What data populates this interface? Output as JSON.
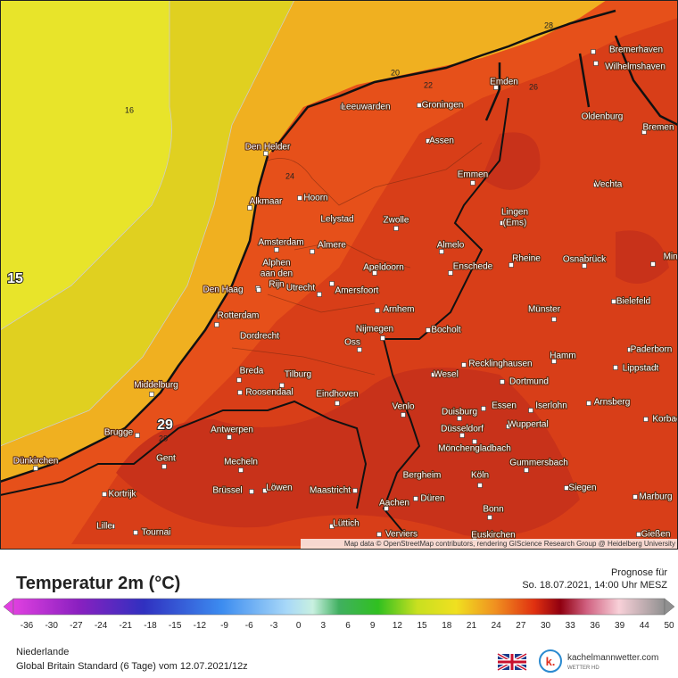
{
  "map": {
    "cities": [
      "Bremerhaven",
      "Wilhelmshaven",
      "Emden",
      "Leeuwarden",
      "Groningen",
      "Oldenburg",
      "Bremen",
      "Den Helder",
      "Assen",
      "Emmen",
      "Vechta",
      "Alkmaar",
      "Hoorn",
      [
        "Lingen",
        "(Ems)"
      ],
      "Lelystad",
      "Zwolle",
      "Amsterdam",
      "Almere",
      "Almelo",
      [
        "Alphen",
        "aan den",
        "Rijn"
      ],
      "Apeldoorn",
      "Enschede",
      "Rheine",
      "Osnabrück",
      "Minden",
      "Den Haag",
      "Utrecht",
      "Amersfoort",
      "Bielefeld",
      "Arnhem",
      "Münster",
      "Rotterdam",
      "Dordrecht",
      "Nijmegen",
      "Oss",
      "Bocholt",
      "Hamm",
      "Paderborn",
      "Recklinghausen",
      "Lippstadt",
      "Breda",
      "Tilburg",
      "Wesel",
      "Dortmund",
      "Middelburg",
      "Roosendaal",
      "Eindhoven",
      "Arnsberg",
      "Venlo",
      "Essen",
      "Iserlohn",
      "Duisburg",
      "Korbach",
      "Wuppertal",
      "Brugge",
      "Antwerpen",
      "Düsseldorf",
      "Mönchengladbach",
      "Gent",
      "Mecheln",
      "Dünkirchen",
      "Gummersbach",
      "Bergheim",
      "Köln",
      "Kortrijk",
      "Brüssel",
      "Löwen",
      "Maastricht",
      "Düren",
      "Siegen",
      "Marburg",
      "Aachen",
      "Bonn",
      "Lille",
      "Tournai",
      "Lüttich",
      "Verviers",
      "Euskirchen",
      "Gießen"
    ],
    "contour_labels": [
      "16",
      "20",
      "22",
      "24",
      "26",
      "28",
      "28"
    ],
    "extreme_labels": [
      "15",
      "29"
    ],
    "attribution": "Map data © OpenStreetMap contributors, rendering GIScience Research Group @ Heidelberg University"
  },
  "legend": {
    "title": "Temperatur 2m (°C)",
    "forecast_label": "Prognose für",
    "forecast_time": "So. 18.07.2021, 14:00 Uhr MESZ",
    "ticks": [
      -36,
      -30,
      -27,
      -24,
      -21,
      -18,
      -15,
      -12,
      -9,
      -6,
      -3,
      0,
      3,
      6,
      9,
      12,
      15,
      18,
      21,
      24,
      27,
      30,
      33,
      36,
      39,
      44,
      50
    ]
  },
  "footer": {
    "region": "Niederlande",
    "model": "Global Britain Standard (6 Tage) vom 12.07.2021/12z",
    "brand": "kachelmannwetter.com",
    "brand_sub": "WETTER HD"
  }
}
